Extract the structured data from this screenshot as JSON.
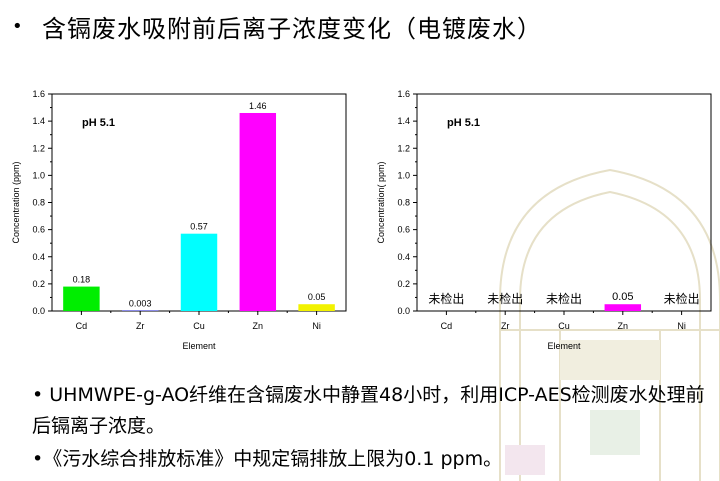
{
  "slide": {
    "bullet": "•",
    "title": "含镉废水吸附前后离子浓度变化（电镀废水）"
  },
  "notes": [
    "• UHMWPE-g-AO纤维在含镉废水中静置48小时，利用ICP-AES检测废水处理前后镉离子浓度。",
    "•《污水综合排放标准》中规定镉排放上限为0.1 ppm。"
  ],
  "chart_data": [
    {
      "type": "bar",
      "annotation": "pH 5.1",
      "xlabel": "Element",
      "ylabel": "Concentration (ppm)",
      "ylim": [
        0,
        1.6
      ],
      "yticks": [
        "0.0",
        "0.2",
        "0.4",
        "0.6",
        "0.8",
        "1.0",
        "1.2",
        "1.4",
        "1.6"
      ],
      "categories": [
        "Cd",
        "Zr",
        "Cu",
        "Zn",
        "Ni"
      ],
      "values": [
        0.18,
        0.003,
        0.57,
        1.46,
        0.05
      ],
      "labels": [
        "0.18",
        "0.003",
        "0.57",
        "1.46",
        "0.05"
      ],
      "colors": [
        "#00ee00",
        "#1a1aff",
        "#00ffff",
        "#ff00ff",
        "#f2f200"
      ]
    },
    {
      "type": "bar",
      "annotation": "pH 5.1",
      "xlabel": "Element",
      "ylabel": "Concentration( ppm)",
      "ylim": [
        0,
        1.6
      ],
      "yticks": [
        "0.0",
        "0.2",
        "0.4",
        "0.6",
        "0.8",
        "1.0",
        "1.2",
        "1.4",
        "1.6"
      ],
      "categories": [
        "Cd",
        "Zr",
        "Cu",
        "Zn",
        "Ni"
      ],
      "values": [
        0,
        0,
        0,
        0.05,
        0
      ],
      "labels": [
        "未检出",
        "未检出",
        "未检出",
        "0.05",
        "未检出"
      ],
      "colors": [
        "#00ee00",
        "#1a1aff",
        "#00ffff",
        "#ff00ff",
        "#f2f200"
      ]
    }
  ]
}
